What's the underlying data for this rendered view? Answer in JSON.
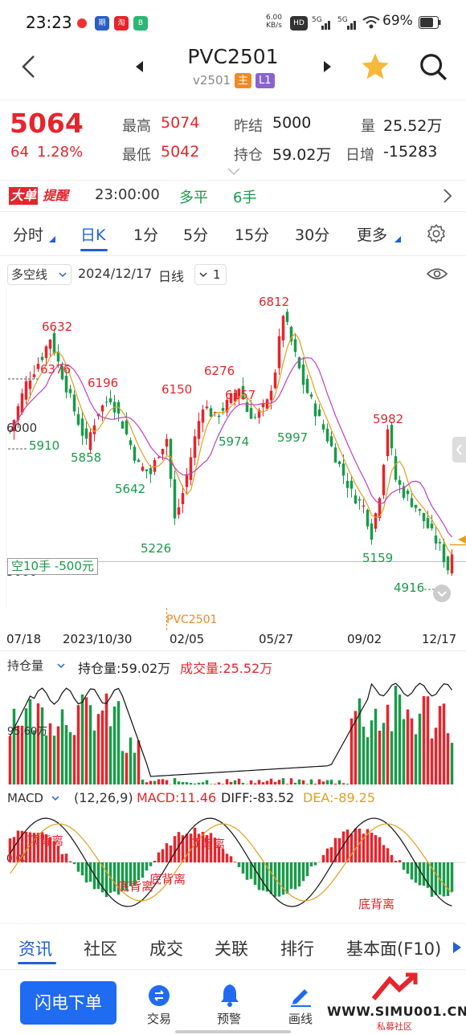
{
  "status_bar": {
    "time": "23:23",
    "net_speed": "6.00\nKB/s",
    "battery": "69%"
  },
  "header": {
    "title": "PVC2501",
    "contract": "v2501",
    "tag_main": "主",
    "tag_level": "L1"
  },
  "quote": {
    "price": "5064",
    "change": "64",
    "change_pct": "1.28%",
    "labels": {
      "high": "最高",
      "low": "最低",
      "prev_settle": "昨结",
      "open_interest": "持仓",
      "volume": "量",
      "daily_inc": "日增"
    },
    "high": "5074",
    "low": "5042",
    "prev_settle": "5000",
    "open_interest": "59.02万",
    "volume": "25.52万",
    "daily_inc": "-15283"
  },
  "alert": {
    "badge_a": "大单",
    "badge_b": "提醒",
    "time": "23:00:00",
    "type": "多平",
    "volume": "6手"
  },
  "period_tabs": [
    "分时",
    "日K",
    "1分",
    "5分",
    "15分",
    "30分",
    "更多"
  ],
  "chart_toolbar": {
    "indicator": "多空线",
    "date": "2024/12/17",
    "period": "日线",
    "count": "1"
  },
  "chart_data": {
    "type": "candlestick",
    "price_labels": {
      "high_6632": "6632",
      "left_6376": "6376",
      "left_5910": "5910",
      "left_6000": "6000",
      "p6196": "6196",
      "p5858": "5858",
      "p5642": "5642",
      "p5226": "5226",
      "p6150": "6150",
      "p6276": "6276",
      "p6157": "6157",
      "p5974": "5974",
      "p6812": "6812",
      "p5997": "5997",
      "p5982": "5982",
      "p5159": "5159",
      "p4916": "4916",
      "left_5000": "5000"
    },
    "short_position_label": "空10手  -500元",
    "contract_marker": "PVC2501",
    "x_ticks": [
      "07/18",
      "2023/10/30",
      "02/05",
      "05/27",
      "09/02",
      "12/17"
    ]
  },
  "oi_panel": {
    "selector": "持仓量",
    "oi_label": "持仓量:59.02万",
    "vol_label": "成交量:25.52万",
    "axis": "95.60万"
  },
  "macd_panel": {
    "selector": "MACD",
    "params": "(12,26,9)",
    "macd": "MACD:11.46",
    "diff": "DIFF:-83.52",
    "dea": "DEA:-89.25",
    "zero": "0.00",
    "notes": {
      "top1": "顶背离",
      "top2": "顶背离",
      "bottom1": "底背离",
      "bottom2": "底背离",
      "bottom3": "底背离"
    }
  },
  "bottom_tabs": [
    "资讯",
    "社区",
    "成交",
    "关联",
    "排行",
    "基本面(F10)"
  ],
  "bottom_nav": {
    "flash_order": "闪电下单",
    "trade": "交易",
    "alert": "预警",
    "draw": "画线"
  },
  "watermark": {
    "site": "WWW.SIMU001.CN",
    "sub": "私募社区"
  },
  "colors": {
    "up": "#e5252c",
    "down": "#1a9a4a",
    "accent": "#2060d8",
    "ma1": "#222222",
    "ma2": "#e0a020",
    "ma3": "#c040c0"
  }
}
